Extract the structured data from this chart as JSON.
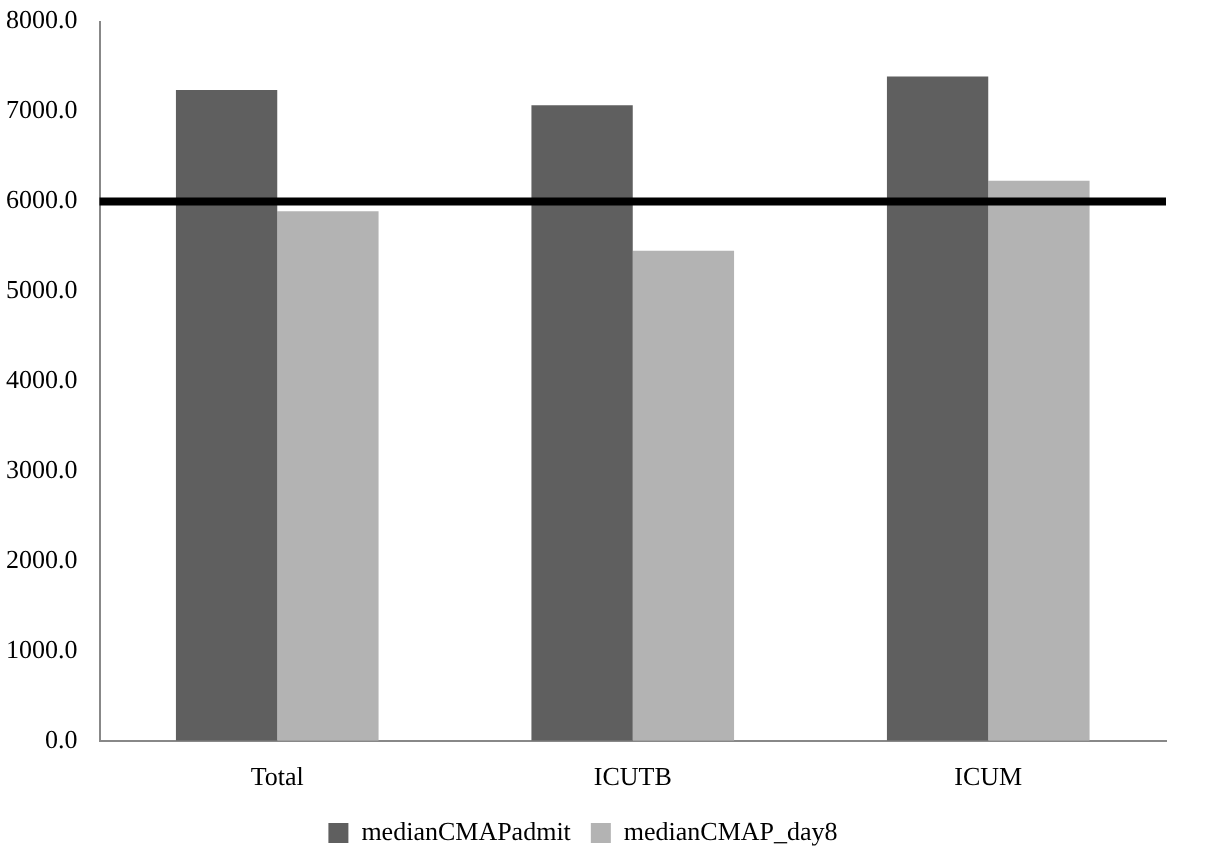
{
  "chart_data": {
    "type": "bar",
    "categories": [
      "Total",
      "ICUTB",
      "ICUM"
    ],
    "series": [
      {
        "name": "medianCMAPadmit",
        "color": "#5f5f5f",
        "values": [
          7240,
          7070,
          7390
        ]
      },
      {
        "name": "medianCMAP_day8",
        "color": "#b3b3b3",
        "values": [
          5890,
          5450,
          6230
        ]
      }
    ],
    "ylim": [
      0,
      8000
    ],
    "yticks": [
      {
        "value": 0,
        "label": "0.0"
      },
      {
        "value": 1000,
        "label": "1000.0"
      },
      {
        "value": 2000,
        "label": "2000.0"
      },
      {
        "value": 3000,
        "label": "3000.0"
      },
      {
        "value": 4000,
        "label": "4000.0"
      },
      {
        "value": 5000,
        "label": "5000.0"
      },
      {
        "value": 6000,
        "label": "6000.0"
      },
      {
        "value": 7000,
        "label": "7000.0"
      },
      {
        "value": 8000,
        "label": "8000.0"
      }
    ],
    "ref_lines": [
      {
        "axis": "y",
        "value": 6000,
        "color": "#000000"
      }
    ],
    "grid": false,
    "legend": "bottom"
  }
}
